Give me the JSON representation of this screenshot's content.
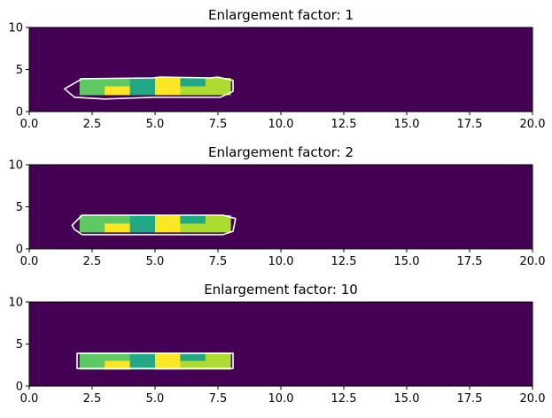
{
  "colors": {
    "background": "#440154",
    "axis": "#000000",
    "contour": "#ffffff",
    "palette": {
      "1": "#2a788e",
      "2": "#22a884",
      "3": "#5ec962",
      "4": "#addc30",
      "5": "#fde725"
    }
  },
  "chart_data": [
    {
      "type": "heatmap",
      "title": "Enlargement factor: 1",
      "xlim": [
        0,
        20
      ],
      "ylim": [
        0,
        10
      ],
      "xticks": [
        "0.0",
        "2.5",
        "5.0",
        "7.5",
        "10.0",
        "12.5",
        "15.0",
        "17.5",
        "20.0"
      ],
      "yticks": [
        "0",
        "5",
        "10"
      ],
      "cells": {
        "x0": 2,
        "y0": 2,
        "dx": 1,
        "dy": 1,
        "rows_top_to_bottom": [
          [
            3,
            3,
            2,
            5,
            2,
            4
          ],
          [
            3,
            5,
            2,
            5,
            4,
            4
          ]
        ]
      },
      "contour": [
        [
          1.4,
          2.7
        ],
        [
          2.1,
          3.9
        ],
        [
          4.9,
          4.0
        ],
        [
          5.2,
          4.1
        ],
        [
          7.2,
          4.0
        ],
        [
          7.5,
          4.1
        ],
        [
          8.1,
          3.7
        ],
        [
          8.1,
          2.4
        ],
        [
          7.6,
          1.7
        ],
        [
          5.0,
          1.7
        ],
        [
          3.0,
          1.5
        ],
        [
          1.8,
          1.7
        ]
      ]
    },
    {
      "type": "heatmap",
      "title": "Enlargement factor: 2",
      "xlim": [
        0,
        20
      ],
      "ylim": [
        0,
        10
      ],
      "xticks": [
        "0.0",
        "2.5",
        "5.0",
        "7.5",
        "10.0",
        "12.5",
        "15.0",
        "17.5",
        "20.0"
      ],
      "yticks": [
        "0",
        "5",
        "10"
      ],
      "cells": {
        "x0": 2,
        "y0": 2,
        "dx": 1,
        "dy": 1,
        "rows_top_to_bottom": [
          [
            3,
            3,
            2,
            5,
            2,
            4
          ],
          [
            3,
            5,
            2,
            5,
            4,
            4
          ]
        ]
      },
      "contour": [
        [
          1.7,
          2.8
        ],
        [
          2.1,
          4.0
        ],
        [
          7.7,
          4.0
        ],
        [
          8.2,
          3.6
        ],
        [
          8.1,
          2.1
        ],
        [
          7.7,
          1.7
        ],
        [
          2.1,
          1.7
        ],
        [
          1.8,
          2.3
        ]
      ]
    },
    {
      "type": "heatmap",
      "title": "Enlargement factor: 10",
      "xlim": [
        0,
        20
      ],
      "ylim": [
        0,
        10
      ],
      "xticks": [
        "0.0",
        "2.5",
        "5.0",
        "7.5",
        "10.0",
        "12.5",
        "15.0",
        "17.5",
        "20.0"
      ],
      "yticks": [
        "0",
        "5",
        "10"
      ],
      "cells": {
        "x0": 2,
        "y0": 2,
        "dx": 1,
        "dy": 1,
        "rows_top_to_bottom": [
          [
            3,
            3,
            2,
            5,
            2,
            4
          ],
          [
            3,
            5,
            2,
            5,
            4,
            4
          ]
        ]
      },
      "contour": [
        [
          1.9,
          2.1
        ],
        [
          1.9,
          3.9
        ],
        [
          8.1,
          3.9
        ],
        [
          8.1,
          2.1
        ]
      ]
    }
  ]
}
